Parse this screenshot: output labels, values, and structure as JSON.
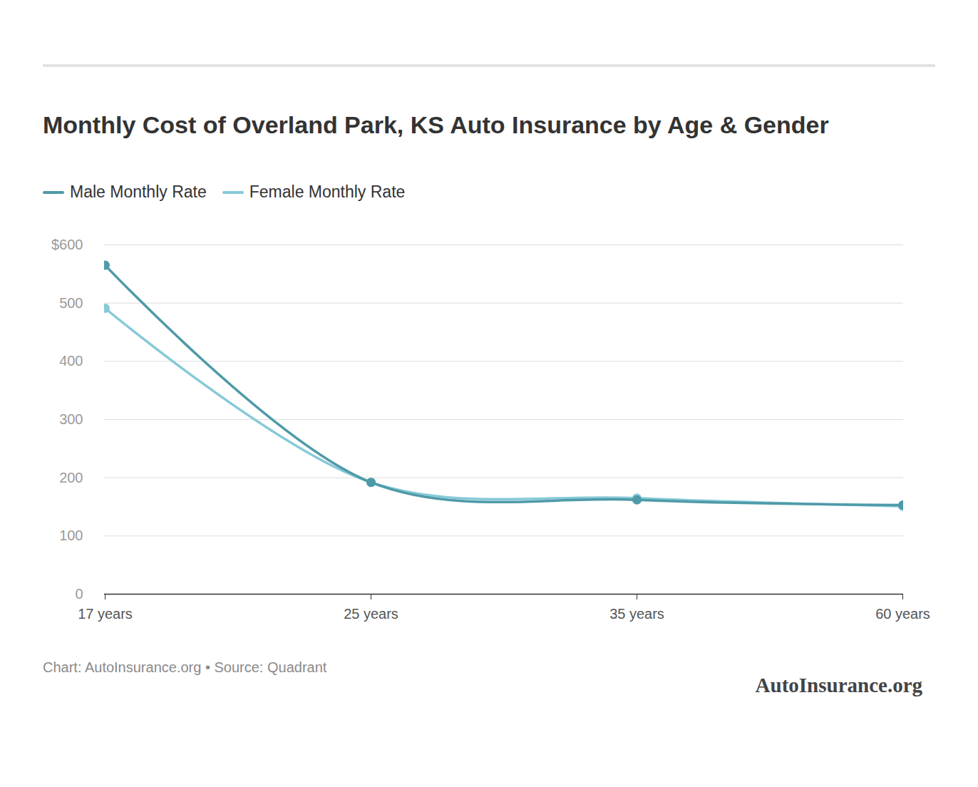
{
  "chart_data": {
    "type": "line",
    "title": "Monthly Cost of Overland Park, KS Auto Insurance by Age & Gender",
    "categories": [
      "17 years",
      "25 years",
      "35 years",
      "60 years"
    ],
    "series": [
      {
        "name": "Male Monthly Rate",
        "color": "#4f9aa8",
        "values": [
          565,
          192,
          162,
          153
        ]
      },
      {
        "name": "Female Monthly Rate",
        "color": "#86c9d8",
        "values": [
          491,
          192,
          165,
          151
        ]
      }
    ],
    "ylim": [
      0,
      600
    ],
    "yticks": [
      0,
      100,
      200,
      300,
      400,
      500,
      {
        "value": 600,
        "label": "$600"
      }
    ],
    "grid": true,
    "marker": "circle",
    "legend": "top-left",
    "caption": "Chart: AutoInsurance.org • Source: Quadrant",
    "logo": "AutoInsurance.org"
  }
}
